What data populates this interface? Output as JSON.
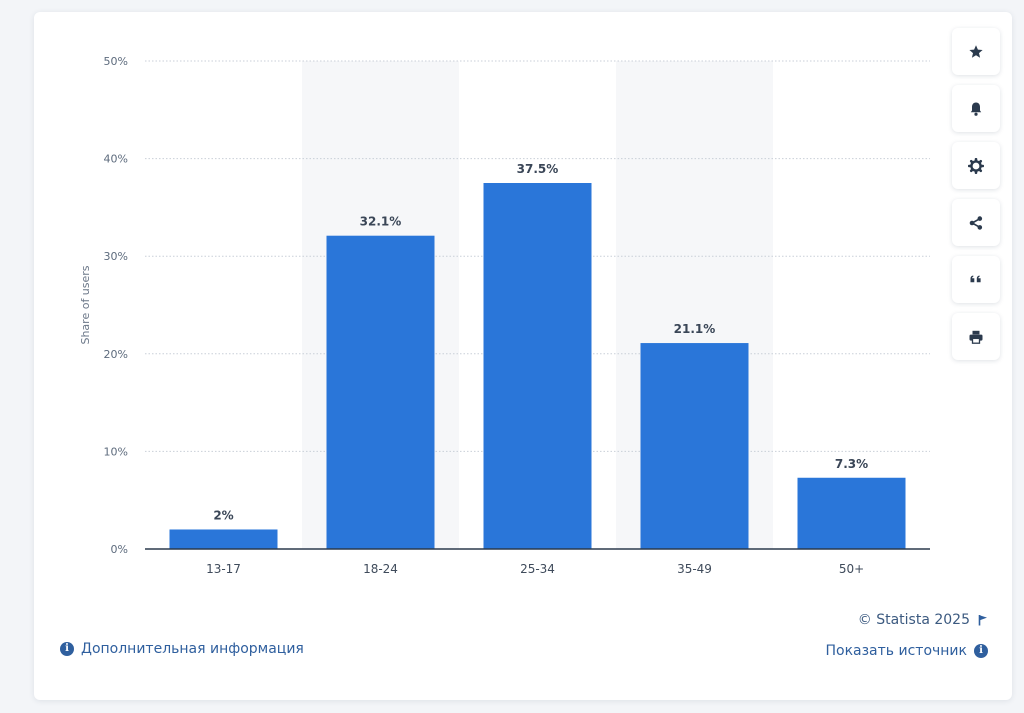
{
  "chart_data": {
    "type": "bar",
    "categories": [
      "13-17",
      "18-24",
      "25-34",
      "35-49",
      "50+"
    ],
    "values": [
      2,
      32.1,
      37.5,
      21.1,
      7.3
    ],
    "data_labels": [
      "2%",
      "32.1%",
      "37.5%",
      "21.1%",
      "7.3%"
    ],
    "ylabel": "Share of users",
    "xlabel": "",
    "ylim": [
      0,
      50
    ],
    "yticks": [
      "0%",
      "10%",
      "20%",
      "30%",
      "40%",
      "50%"
    ],
    "grid": true,
    "legend": "none",
    "bar_color": "#2a76d9"
  },
  "toolbar": {
    "icons": [
      "star-icon",
      "bell-icon",
      "gear-icon",
      "share-icon",
      "quote-icon",
      "print-icon"
    ]
  },
  "footer": {
    "more_info": "Дополнительная информация",
    "copyright": "© Statista 2025",
    "show_source": "Показать источник"
  },
  "colors": {
    "link": "#2f5f9e",
    "band": "#f6f7f9"
  }
}
